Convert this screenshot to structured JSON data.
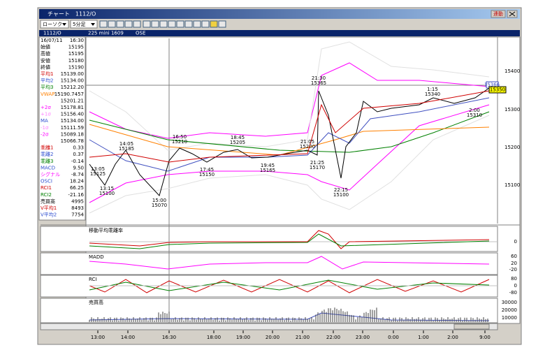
{
  "window": {
    "title": "チャート　1112/O",
    "link_button": "連動"
  },
  "toolbar": {
    "chart_style": "ローソク",
    "interval": "5分足"
  },
  "info_bar": {
    "symbol": "1112/O",
    "contract": "225 mini 1609",
    "exchange": "OSE"
  },
  "data_panel": {
    "rows": [
      {
        "label": "16/07/11",
        "value": "16:30",
        "color": "#000"
      },
      {
        "label": "始値",
        "value": "15195",
        "color": "#000"
      },
      {
        "label": "高値",
        "value": "15195",
        "color": "#000"
      },
      {
        "label": "安値",
        "value": "15180",
        "color": "#000"
      },
      {
        "label": "終値",
        "value": "15190",
        "color": "#000"
      },
      {
        "label": "平均1",
        "value": "15139.00",
        "color": "#d00000"
      },
      {
        "label": "平均2",
        "value": "15134.00",
        "color": "#3050d0"
      },
      {
        "label": "平均3",
        "value": "15212.20",
        "color": "#008000"
      },
      {
        "label": "VWAP",
        "value": "15190.7457",
        "color": "#ff8000"
      },
      {
        "value": "15201.21",
        "color": "#000"
      },
      {
        "label": "+2σ",
        "value": "15178.81",
        "color": "#ff00ff"
      },
      {
        "label": "+1σ",
        "value": "15156.40",
        "color": "#ff80ff"
      },
      {
        "label": "MA",
        "value": "15134.00",
        "color": "#3050d0"
      },
      {
        "label": "-1σ",
        "value": "15111.59",
        "color": "#ff80ff"
      },
      {
        "label": "-2σ",
        "value": "15089.18",
        "color": "#ff00ff"
      },
      {
        "value": "15066.78",
        "color": "#000"
      },
      {
        "label": "乖離1",
        "value": "0.33",
        "color": "#d00000"
      },
      {
        "label": "乖離2",
        "value": "0.37",
        "color": "#3050d0"
      },
      {
        "label": "乖離3",
        "value": "-0.14",
        "color": "#008000"
      },
      {
        "label": "MACD",
        "value": "9.50",
        "color": "#3050d0"
      },
      {
        "label": "シグナル",
        "value": "-8.74",
        "color": "#ff00ff"
      },
      {
        "label": "OSCI",
        "value": "18.24",
        "color": "#3050d0"
      },
      {
        "label": "RCI1",
        "value": "66.25",
        "color": "#d00000"
      },
      {
        "label": "RCI2",
        "value": "-21.16",
        "color": "#008000"
      },
      {
        "label": "売買高",
        "value": "4995",
        "color": "#000"
      },
      {
        "label": "V平均1",
        "value": "8493",
        "color": "#d00000"
      },
      {
        "label": "V平均2",
        "value": "7754",
        "color": "#3050d0"
      }
    ]
  },
  "price_chart": {
    "axis_labels": [
      "15400",
      "15300",
      "15200",
      "15100"
    ],
    "last_price": "15366",
    "current_price": "15350",
    "annotations": [
      {
        "time": "13:05",
        "price": "15125"
      },
      {
        "time": "14:05",
        "price": "15185"
      },
      {
        "time": "13:15",
        "price": "15100"
      },
      {
        "time": "15:00",
        "price": "15070"
      },
      {
        "time": "16:50",
        "price": "15210"
      },
      {
        "time": "17:45",
        "price": "15150"
      },
      {
        "time": "18:45",
        "price": "15205"
      },
      {
        "time": "19:45",
        "price": "15165"
      },
      {
        "time": "21:05",
        "price": "15200"
      },
      {
        "time": "21:25",
        "price": "15170"
      },
      {
        "time": "21:30",
        "price": "15365"
      },
      {
        "time": "22:15",
        "price": "15100"
      },
      {
        "time": "1:15",
        "price": "15340"
      },
      {
        "time": "2:00",
        "price": "15310"
      }
    ]
  },
  "indicators": [
    {
      "title": "移動平均乖離率",
      "axis_labels": [
        "0"
      ]
    },
    {
      "title": "MADD",
      "axis_labels": [
        "60",
        "20",
        "-20"
      ]
    },
    {
      "title": "RCI",
      "axis_labels": [
        "80",
        "0",
        "-80"
      ]
    },
    {
      "title": "売買高",
      "axis_labels": [
        "30000",
        "20000",
        "10000"
      ]
    }
  ],
  "time_axis": [
    "13:00",
    "14:00",
    "16:30",
    "18:00",
    "19:00",
    "20:00",
    "21:00",
    "22:00",
    "23:00",
    "0:00",
    "1:00",
    "2:00",
    "9:00"
  ]
}
